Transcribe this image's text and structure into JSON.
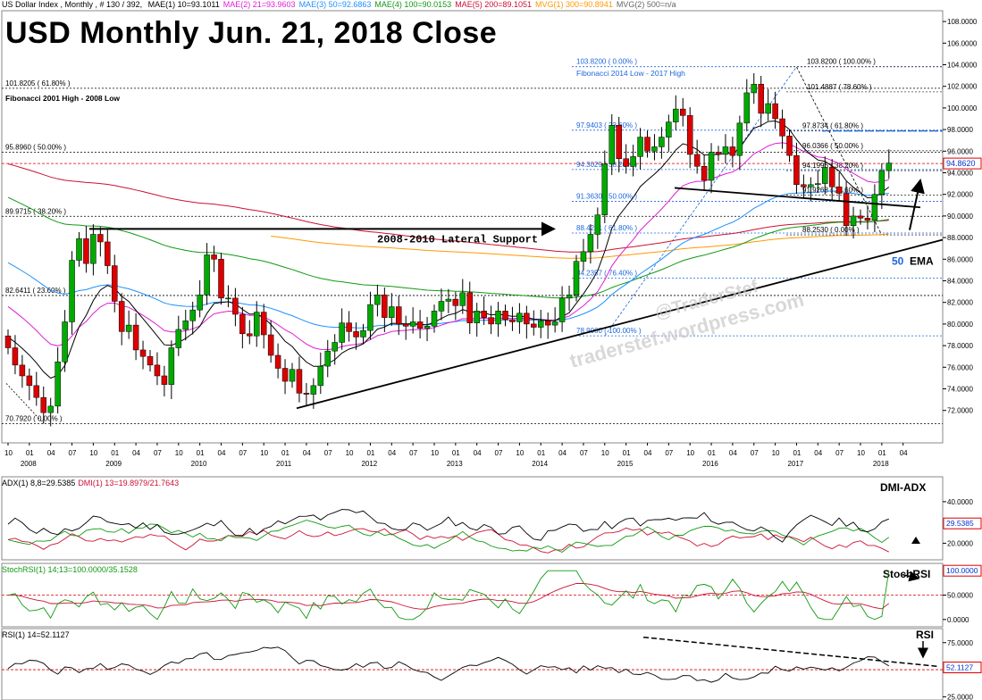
{
  "header": {
    "instrument": "US Dollar Index , Monthly , # 130 / 392,",
    "indicators": [
      {
        "text": "MAE(1) 10=93.1011",
        "color": "#000000"
      },
      {
        "text": "MAE(2) 21=93.9603",
        "color": "#e01ed8"
      },
      {
        "text": "MAE(3) 50=92.6863",
        "color": "#1e90ff"
      },
      {
        "text": "MAE(4) 100=90.0153",
        "color": "#119911"
      },
      {
        "text": "MAE(5) 200=89.1051",
        "color": "#cc1133"
      },
      {
        "text": "MVG(1) 300=90.8941",
        "color": "#ff9900"
      },
      {
        "text": "MVG(2) 500=n/a",
        "color": "#666666"
      }
    ]
  },
  "title": "USD Monthly Jun. 21, 2018 Close",
  "watermark": [
    "@TraderStef",
    "traderstef.wordpress.com"
  ],
  "colors": {
    "up": "#00aa00",
    "down": "#dd0000",
    "fib_old": "#000000",
    "fib_new": "#1e66dd"
  },
  "chart_data": [
    {
      "type": "candlestick",
      "ylim": [
        69,
        109
      ],
      "y_ticks": [
        "72.0000",
        "74.0000",
        "76.0000",
        "78.0000",
        "80.0000",
        "82.0000",
        "84.0000",
        "86.0000",
        "88.0000",
        "90.0000",
        "92.0000",
        "94.0000",
        "96.0000",
        "98.0000",
        "100.0000",
        "102.0000",
        "104.0000",
        "106.0000",
        "108.0000"
      ],
      "last_price": "94.8620",
      "month_ticks": [
        "10",
        "01",
        "04",
        "07",
        "10",
        "01",
        "04",
        "07",
        "10",
        "01",
        "04",
        "07",
        "10",
        "01",
        "04",
        "07",
        "10",
        "01",
        "04",
        "07",
        "10",
        "01",
        "04",
        "07",
        "10",
        "01",
        "04",
        "07",
        "10",
        "01",
        "04",
        "07",
        "10",
        "01",
        "04",
        "07",
        "10",
        "01",
        "04",
        "07",
        "10",
        "01",
        "04"
      ],
      "year_labels": [
        "2008",
        "2009",
        "2010",
        "2011",
        "2012",
        "2013",
        "2014",
        "2015",
        "2016",
        "2017",
        "2018"
      ],
      "closes": [
        77.8,
        76.2,
        75.2,
        74.3,
        73.2,
        71.8,
        72.4,
        76.5,
        80.2,
        85.9,
        87.9,
        85.6,
        88.3,
        87.6,
        85.4,
        82.1,
        79.3,
        79.9,
        77.6,
        77.0,
        76.2,
        75.2,
        74.4,
        77.8,
        79.5,
        80.3,
        81.3,
        82.7,
        86.4,
        86.0,
        82.4,
        82.4,
        80.9,
        79.1,
        78.9,
        81.1,
        79.0,
        77.1,
        75.9,
        74.7,
        75.8,
        73.6,
        73.5,
        74.3,
        76.1,
        77.5,
        78.3,
        80.1,
        79.3,
        78.8,
        79.4,
        81.8,
        82.7,
        80.6,
        81.6,
        80.0,
        79.8,
        80.2,
        79.6,
        79.8,
        81.2,
        82.1,
        82.3,
        81.7,
        82.9,
        80.1,
        81.2,
        80.6,
        80.0,
        81.2,
        80.4,
        80.2,
        81.0,
        80.0,
        79.7,
        80.3,
        79.9,
        80.2,
        82.4,
        82.7,
        85.8,
        86.7,
        88.3,
        90.1,
        94.8,
        98.4,
        95.3,
        94.6,
        95.5,
        97.3,
        96.0,
        96.4,
        97.3,
        98.7,
        99.9,
        99.3,
        95.7,
        94.6,
        93.3,
        95.9,
        95.7,
        96.4,
        95.6,
        98.6,
        101.4,
        102.2,
        99.5,
        100.4,
        99.0,
        97.4,
        95.6,
        92.9,
        92.7,
        92.9,
        93.0,
        94.5,
        92.7,
        92.1,
        89.1,
        90.0,
        89.8,
        89.6,
        92.0,
        94.2,
        94.9
      ],
      "fib_2001_2008": [
        {
          "label": "101.8205 ( 61.80% )",
          "value": 101.82
        },
        {
          "label": "95.8960 ( 50.00% )",
          "value": 95.9
        },
        {
          "label": "89.9715 ( 38.20% )",
          "value": 89.97
        },
        {
          "label": "82.6411 ( 23.60% )",
          "value": 82.64
        },
        {
          "label": "70.7920 ( 0.00% )",
          "value": 70.79
        }
      ],
      "fib_2014_2017": [
        {
          "label": "103.8200 ( 0.00% )",
          "value": 103.82
        },
        {
          "label": "97.9403 ( 23.60% )",
          "value": 97.94
        },
        {
          "label": "94.3029 ( 38.20% )",
          "value": 94.3
        },
        {
          "label": "91.3630 ( 50.00% )",
          "value": 91.36
        },
        {
          "label": "88.4231 ( 61.80% )",
          "value": 88.42
        },
        {
          "label": "84.2357 ( 76.40% )",
          "value": 84.24
        },
        {
          "label": "78.9060 ( 100.00% )",
          "value": 78.91
        }
      ],
      "fib_2017_retrace": [
        {
          "label": "103.8200 ( 100.00% )",
          "value": 103.82
        },
        {
          "label": "101.4887 ( 78.60% )",
          "value": 101.49
        },
        {
          "label": "97.8734 ( 61.80% )",
          "value": 97.87
        },
        {
          "label": "96.0366 ( 50.00% )",
          "value": 96.04
        },
        {
          "label": "94.1996 ( 38.20% )",
          "value": 94.2
        },
        {
          "label": "91.9268 ( 23.60% )",
          "value": 91.93
        },
        {
          "label": "88.2530 ( 0.00% )",
          "value": 88.25
        }
      ],
      "annotations": {
        "fib_old_title": "Fibonacci 2001 High - 2008 Low",
        "fib_new_title": "Fibonacci 2014 Low - 2017 High",
        "lateral_support": "2008-2010 Lateral Support",
        "ema_label_num": "50",
        "ema_label_text": "EMA"
      }
    },
    {
      "type": "line",
      "title_parts": [
        {
          "text": "ADX(1) 8,8=29.5385",
          "color": "#000000"
        },
        {
          "text": "DMI(1) 13=19.8979/21.7643",
          "color": "#cc1133"
        }
      ],
      "label": "DMI-ADX",
      "ylim": [
        12,
        52
      ],
      "y_ticks": [
        "20.0000",
        "40.0000"
      ],
      "last_value": "29.5385"
    },
    {
      "type": "line",
      "title_parts": [
        {
          "text": "StochRSI(1) 14;13=100.0000/35.1528",
          "color": "#119911"
        }
      ],
      "label": "StochRSI",
      "ylim": [
        -15,
        115
      ],
      "y_ticks": [
        "0.0000",
        "50.0000"
      ],
      "last_value": "100.0000"
    },
    {
      "type": "line",
      "title_parts": [
        {
          "text": "RSI(1) 14=52.1127",
          "color": "#000000"
        }
      ],
      "label": "RSI",
      "ylim": [
        22,
        88
      ],
      "y_ticks": [
        "25.0000",
        "75.0000"
      ],
      "last_value": "52.1127"
    }
  ]
}
